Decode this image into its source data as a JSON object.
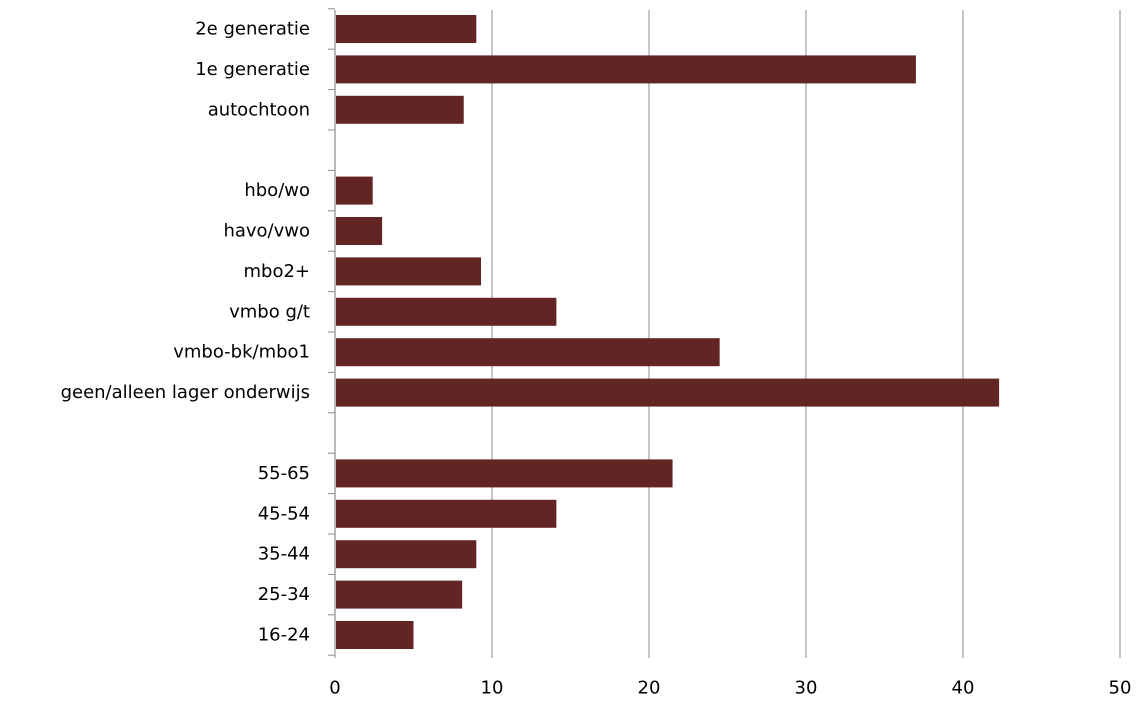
{
  "chart_data": {
    "type": "bar",
    "orientation": "horizontal",
    "title": "",
    "xlabel": "",
    "ylabel": "",
    "xlim": [
      0,
      50
    ],
    "xticks": [
      0,
      10,
      20,
      30,
      40,
      50
    ],
    "grid": true,
    "legend": "none",
    "bar_color": "#632523",
    "categories": [
      "2e generatie",
      "1e generatie",
      "autochtoon",
      "",
      "hbo/wo",
      "havo/vwo",
      "mbo2+",
      "vmbo g/t",
      "vmbo-bk/mbo1",
      "geen/alleen lager onderwijs",
      "",
      "55-65",
      "45-54",
      "35-44",
      "25-34",
      "16-24"
    ],
    "values": [
      9.0,
      37.0,
      8.2,
      null,
      2.4,
      3.0,
      9.3,
      14.1,
      24.5,
      42.3,
      null,
      21.5,
      14.1,
      9.0,
      8.1,
      5.0
    ]
  }
}
